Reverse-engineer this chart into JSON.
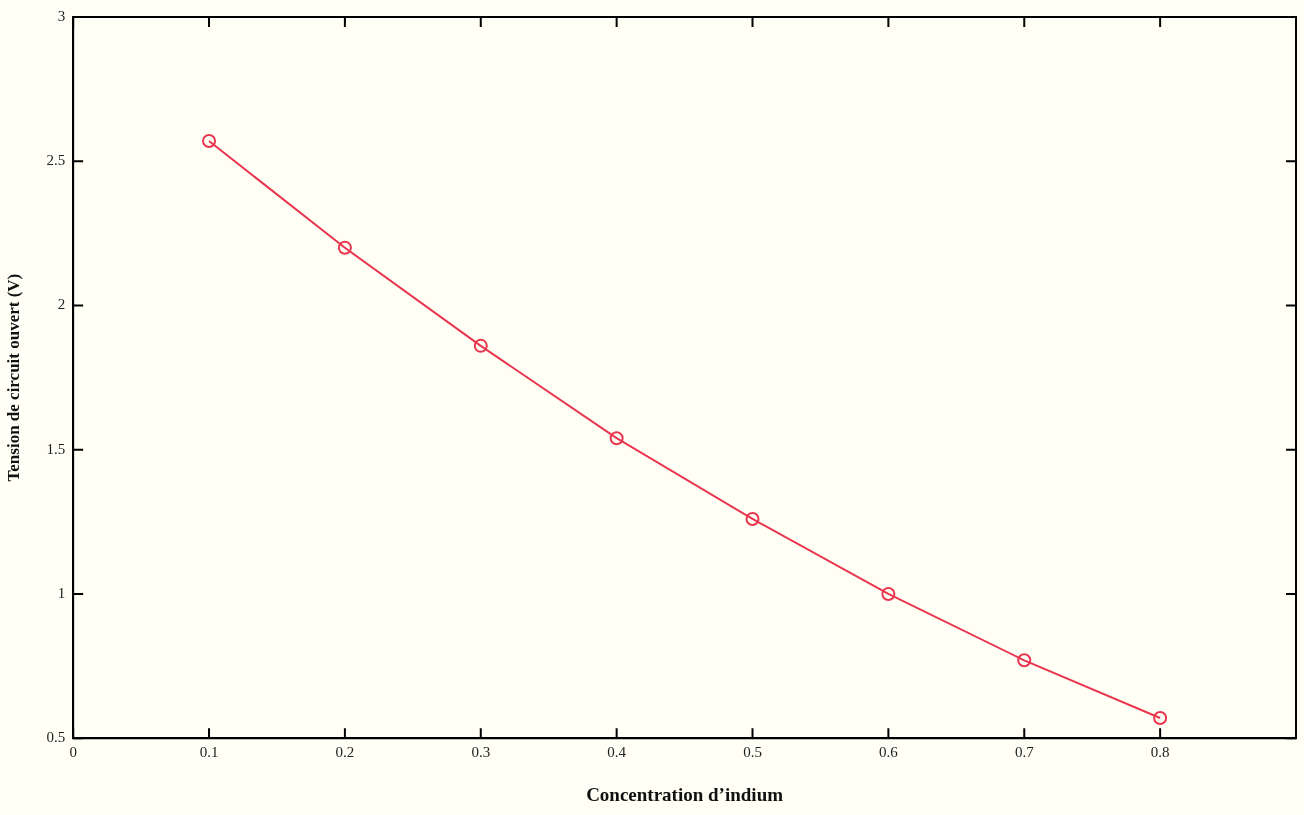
{
  "chart_data": {
    "type": "line",
    "xlabel": "Concentration d’indium",
    "ylabel": "Tension de circuit ouvert (V)",
    "x": [
      0.1,
      0.2,
      0.3,
      0.4,
      0.5,
      0.6,
      0.7,
      0.8
    ],
    "series": [
      {
        "color": "#e8364f",
        "values": [
          2.57,
          2.2,
          1.86,
          1.54,
          1.26,
          1.0,
          0.77,
          0.57
        ]
      }
    ],
    "xlim": [
      0,
      0.9
    ],
    "xticks": [
      0,
      0.1,
      0.2,
      0.3,
      0.4,
      0.5,
      0.6,
      0.7,
      0.8
    ],
    "ylim": [
      0.5,
      3
    ],
    "yticks": [
      0.5,
      1,
      1.5,
      2,
      2.5,
      3
    ],
    "marker": "circle",
    "line_style": "solid",
    "legend": false,
    "grid": false
  }
}
